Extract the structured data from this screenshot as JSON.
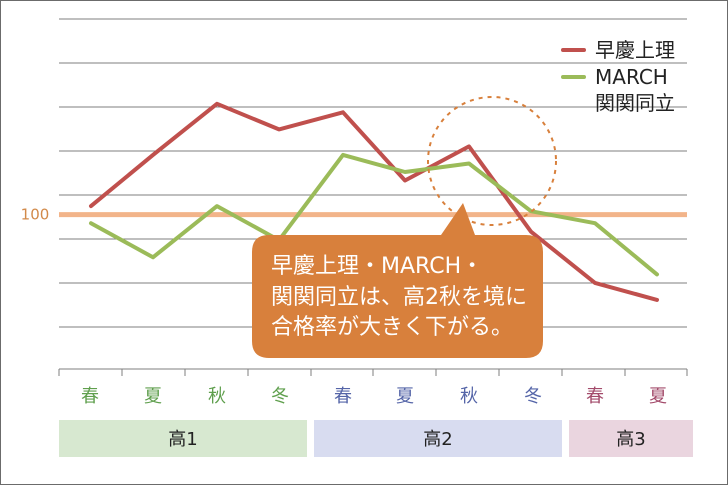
{
  "chart_data": {
    "type": "line",
    "categories": [
      "春",
      "夏",
      "秋",
      "冬",
      "春",
      "夏",
      "秋",
      "冬",
      "春",
      "夏"
    ],
    "category_colors": [
      "#5f9f4d",
      "#5f9f4d",
      "#5f9f4d",
      "#5f9f4d",
      "#5565a8",
      "#5565a8",
      "#5565a8",
      "#5565a8",
      "#a34b6b",
      "#a34b6b"
    ],
    "series": [
      {
        "name": "早慶上理",
        "color": "#c0504d",
        "values": [
          105,
          135,
          165,
          150,
          160,
          120,
          140,
          90,
          60,
          50
        ]
      },
      {
        "name": "MARCH 関関同立",
        "color": "#9bbb59",
        "values": [
          95,
          75,
          105,
          85,
          135,
          125,
          130,
          102,
          95,
          65
        ]
      }
    ],
    "reference_line": {
      "value": 100,
      "label": "100",
      "color": "#f2b48a"
    },
    "groups": [
      {
        "label": "高1",
        "color": "#d7e8d0",
        "span": 4
      },
      {
        "label": "高2",
        "color": "#d8dcf0",
        "span": 4
      },
      {
        "label": "高3",
        "color": "#ead5df",
        "span": 2
      }
    ],
    "ylim": [
      40,
      210
    ],
    "grid": true,
    "legend_position": "top-right",
    "callout": {
      "lines": [
        "早慶上理・MARCH・",
        "関関同立は、高2秋を境に",
        "合格率が大きく下がる。"
      ],
      "fill": "#d8803c",
      "text_color": "#ffffff"
    },
    "highlight_circle": {
      "color": "#d8803c"
    }
  }
}
